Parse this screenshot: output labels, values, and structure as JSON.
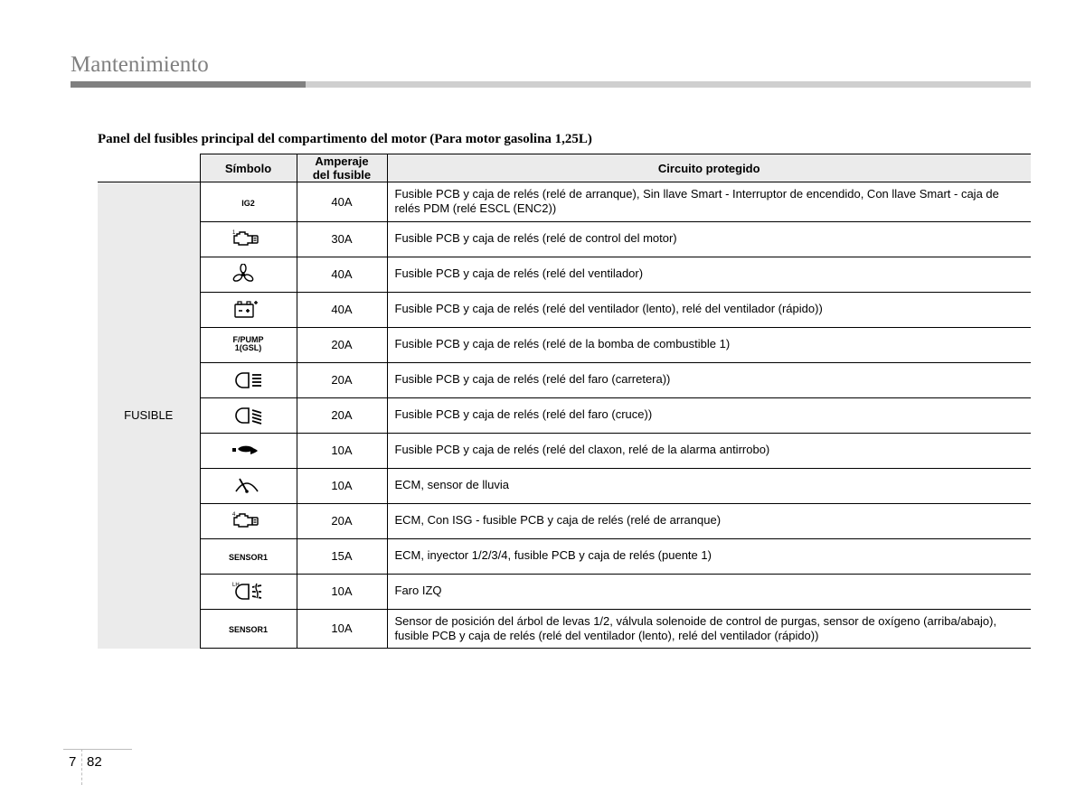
{
  "header": {
    "section_title": "Mantenimiento"
  },
  "caption": "Panel del fusibles principal del compartimento del motor (Para motor gasolina 1,25L)",
  "table": {
    "headers": {
      "symbol": "Símbolo",
      "amperage": "Amperaje del fusible",
      "circuit": "Circuito protegido"
    },
    "group_label": "FUSIBLE",
    "rows": [
      {
        "symbol_kind": "text",
        "symbol_text": "IG2",
        "amp": "40A",
        "desc": "Fusible PCB y caja de relés (relé de arranque), Sin llave Smart - Interruptor de encendido, Con llave Smart - caja de relés PDM (relé ESCL (ENC2))"
      },
      {
        "symbol_kind": "engine",
        "symbol_sup": "1",
        "amp": "30A",
        "desc": "Fusible PCB y caja de relés (relé de control del motor)"
      },
      {
        "symbol_kind": "fan",
        "amp": "40A",
        "desc": "Fusible PCB y caja de relés (relé del ventilador)"
      },
      {
        "symbol_kind": "battery-plus",
        "amp": "40A",
        "desc": "Fusible PCB y caja de relés (relé del ventilador (lento), relé del ventilador (rápido))"
      },
      {
        "symbol_kind": "text",
        "symbol_text": "F/PUMP\n1(GSL)",
        "amp": "20A",
        "desc": "Fusible PCB y caja de relés (relé de la bomba de combustible 1)"
      },
      {
        "symbol_kind": "high-beam",
        "amp": "20A",
        "desc": "Fusible PCB y caja de relés (relé del faro (carretera))"
      },
      {
        "symbol_kind": "low-beam",
        "amp": "20A",
        "desc": "Fusible PCB y caja de relés (relé del faro (cruce))"
      },
      {
        "symbol_kind": "horn",
        "amp": "10A",
        "desc": "Fusible PCB y caja de relés (relé del claxon, relé de la alarma antirrobo)"
      },
      {
        "symbol_kind": "wiper",
        "amp": "10A",
        "desc": "ECM, sensor de lluvia"
      },
      {
        "symbol_kind": "engine",
        "symbol_sup": "4",
        "amp": "20A",
        "desc": "ECM, Con ISG - fusible PCB y caja de relés (relé de arranque)"
      },
      {
        "symbol_kind": "text",
        "symbol_text": "SENSOR1",
        "amp": "15A",
        "desc": "ECM, inyector 1/2/3/4, fusible PCB y caja de relés (puente 1)"
      },
      {
        "symbol_kind": "fog",
        "symbol_sup": "LH",
        "amp": "10A",
        "desc": "Faro IZQ"
      },
      {
        "symbol_kind": "text",
        "symbol_text": "SENSOR1",
        "amp": "10A",
        "desc": "Sensor de posición del árbol de levas 1/2, válvula solenoide de control de purgas, sensor de oxígeno (arriba/abajo), fusible PCB y caja de relés (relé del ventilador (lento), relé del ventilador (rápido))"
      }
    ]
  },
  "footer": {
    "chapter": "7",
    "page": "82"
  },
  "colors": {
    "header_gray": "#808080",
    "light_rule": "#cfcfcf",
    "th_bg": "#ebebeb",
    "border": "#000000",
    "footer_rule": "#bdbdbd"
  }
}
